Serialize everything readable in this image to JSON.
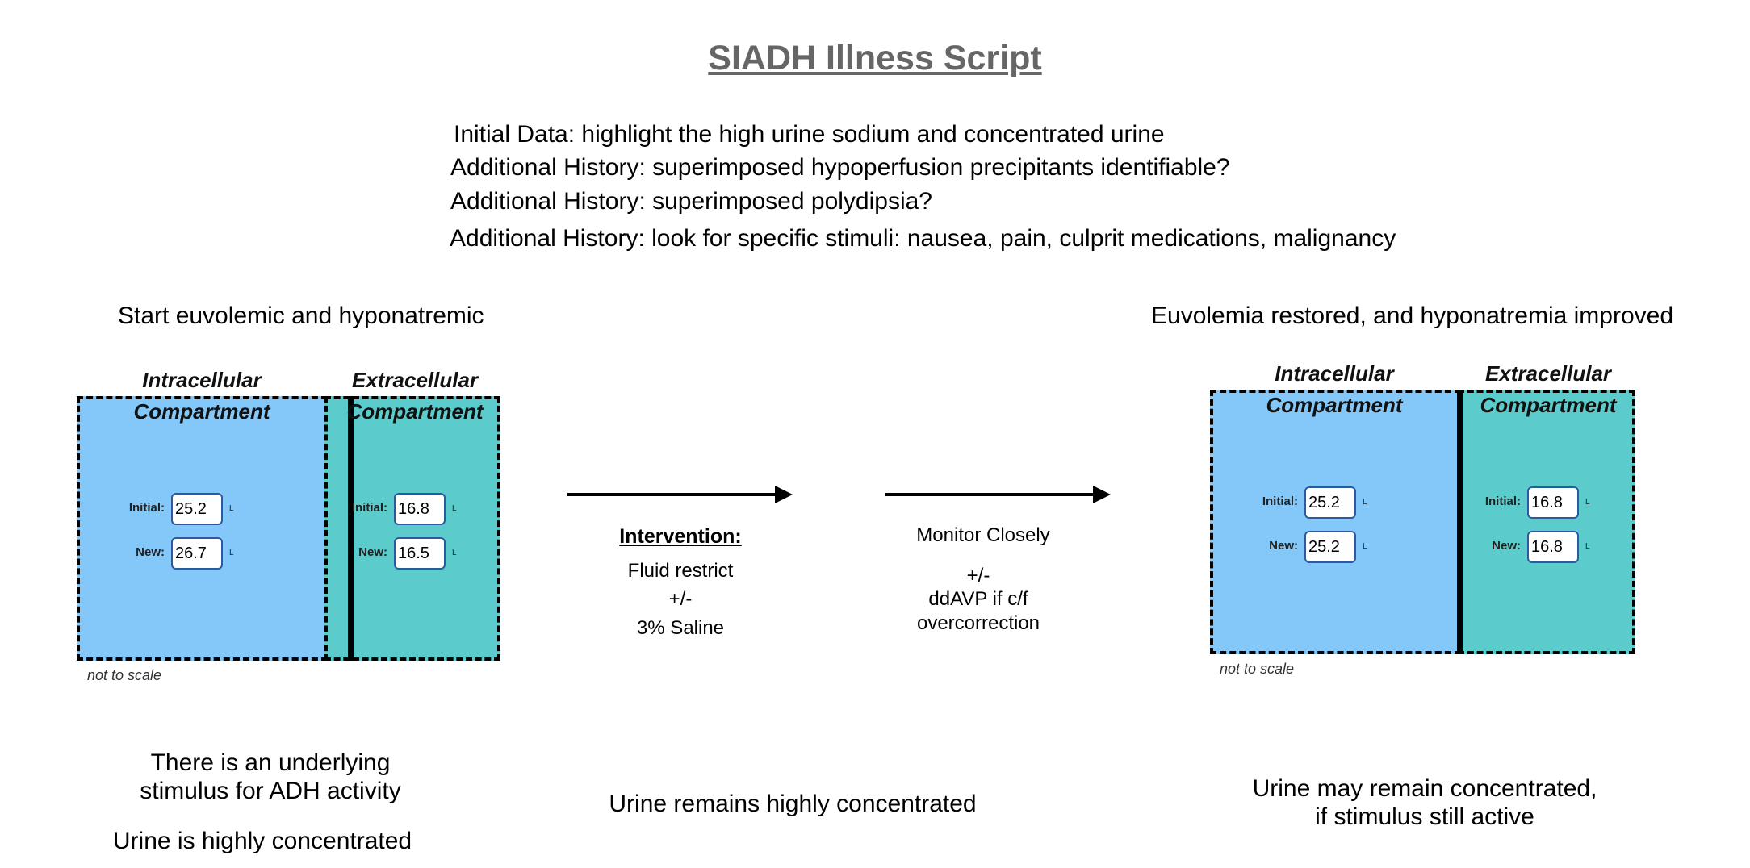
{
  "title": "SIADH Illness Script",
  "history": [
    "Initial Data: highlight the high urine sodium and concentrated urine",
    "Additional History:  superimposed hypoperfusion precipitants identifiable?",
    "Additional History:  superimposed polydipsia?",
    "Additional History: look for specific stimuli: nausea, pain, culprit medications, malignancy"
  ],
  "left": {
    "heading": "Start euvolemic and hyponatremic",
    "ic_label_1": "Intracellular",
    "ic_label_2": "Compartment",
    "ec_label_1": "Extracellular",
    "ec_label_2": "Compartment",
    "ic_initial_label": "Initial:",
    "ic_initial": "25.2",
    "ic_new_label": "New:",
    "ic_new": "26.7",
    "ec_initial_label": "Initial:",
    "ec_initial": "16.8",
    "ec_new_label": "New:",
    "ec_new": "16.5",
    "unit": "L",
    "not_to_scale": "not to scale",
    "caption_1": "There is an underlying",
    "caption_2": "stimulus for ADH activity",
    "caption_3": "Urine is highly concentrated"
  },
  "middle": {
    "intervention_title": "Intervention:",
    "intervention_1": "Fluid restrict",
    "intervention_2": "+/-",
    "intervention_3": "3% Saline",
    "monitor_1": "Monitor Closely",
    "monitor_2": "+/-",
    "monitor_3": "ddAVP if c/f",
    "monitor_4": "overcorrection",
    "caption": "Urine remains highly concentrated"
  },
  "right": {
    "heading": "Euvolemia restored, and hyponatremia improved",
    "ic_label_1": "Intracellular",
    "ic_label_2": "Compartment",
    "ec_label_1": "Extracellular",
    "ec_label_2": "Compartment",
    "ic_initial_label": "Initial:",
    "ic_initial": "25.2",
    "ic_new_label": "New:",
    "ic_new": "25.2",
    "ec_initial_label": "Initial:",
    "ec_initial": "16.8",
    "ec_new_label": "New:",
    "ec_new": "16.8",
    "unit": "L",
    "not_to_scale": "not to scale",
    "caption_1": "Urine may remain concentrated,",
    "caption_2": "if stimulus still active"
  }
}
